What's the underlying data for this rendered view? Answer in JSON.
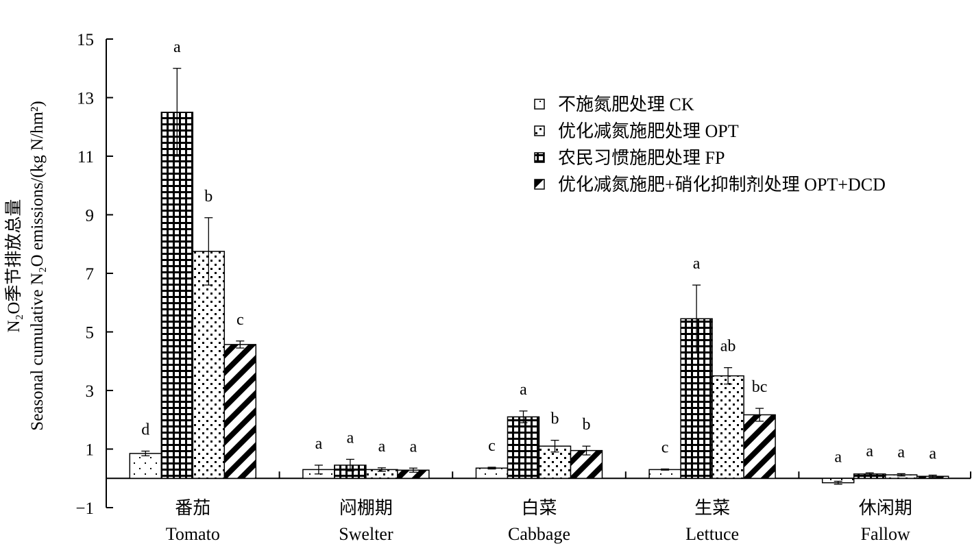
{
  "chart_data": {
    "type": "bar",
    "ylabel_line1": "N₂O季节排放总量",
    "ylabel_line2": "Seasonal cumulative N₂O emissions/(kg N/hm²)",
    "ylim": [
      -1,
      15
    ],
    "yticks": [
      "15",
      "13",
      "11",
      "9",
      "7",
      "5",
      "3",
      "1",
      "−1"
    ],
    "ytick_values": [
      15,
      13,
      11,
      9,
      7,
      5,
      3,
      1,
      -1
    ],
    "categories": [
      {
        "cn": "番茄",
        "en": "Tomato"
      },
      {
        "cn": "闷棚期",
        "en": "Swelter"
      },
      {
        "cn": "白菜",
        "en": "Cabbage"
      },
      {
        "cn": "生菜",
        "en": "Lettuce"
      },
      {
        "cn": "休闲期",
        "en": "Fallow"
      }
    ],
    "series": [
      {
        "name": "不施氮肥处理 CK",
        "pattern": "sparse-dots",
        "values": [
          0.85,
          0.3,
          0.35,
          0.3,
          -0.15
        ],
        "errors": [
          0.08,
          0.15,
          0.03,
          0.02,
          0.05
        ],
        "letters": [
          "d",
          "a",
          "c",
          "c",
          "a"
        ]
      },
      {
        "name": "农民习惯施肥处理 FP",
        "pattern": "grid",
        "values": [
          12.5,
          0.45,
          2.1,
          5.45,
          0.15
        ],
        "errors": [
          1.5,
          0.2,
          0.2,
          1.15,
          0.04
        ],
        "letters": [
          "a",
          "a",
          "a",
          "a",
          "a"
        ]
      },
      {
        "name": "优化减氮施肥处理 OPT",
        "pattern": "dense-dots",
        "values": [
          7.75,
          0.3,
          1.1,
          3.5,
          0.12
        ],
        "errors": [
          1.15,
          0.06,
          0.2,
          0.28,
          0.04
        ],
        "letters": [
          "b",
          "a",
          "b",
          "ab",
          "a"
        ]
      },
      {
        "name": "优化减氮施肥+硝化抑制剂处理 OPT+DCD",
        "pattern": "diagonal",
        "values": [
          4.57,
          0.28,
          0.95,
          2.17,
          0.07
        ],
        "errors": [
          0.12,
          0.07,
          0.15,
          0.22,
          0.04
        ],
        "letters": [
          "c",
          "a",
          "b",
          "bc",
          "a"
        ]
      }
    ],
    "legend": {
      "placement": "top-right",
      "items": [
        {
          "label": "不施氮肥处理 CK",
          "pattern": "sparse-dots"
        },
        {
          "label": "优化减氮施肥处理 OPT",
          "pattern": "dense-dots"
        },
        {
          "label": "农民习惯施肥处理 FP",
          "pattern": "grid"
        },
        {
          "label": "优化减氮施肥+硝化抑制剂处理 OPT+DCD",
          "pattern": "diagonal"
        }
      ]
    },
    "grid": false
  }
}
